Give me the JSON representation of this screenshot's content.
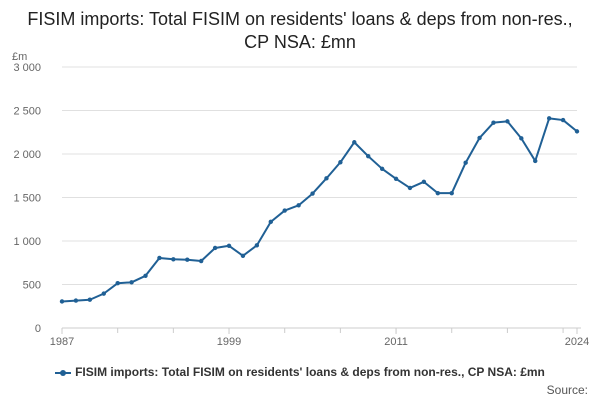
{
  "chart_data": {
    "type": "line",
    "title": "FISIM imports: Total FISIM on residents' loans & deps from non-res., CP NSA: £mn",
    "ylabel": "£m",
    "xlabel": "",
    "ylim": [
      0,
      3000
    ],
    "xlim": [
      1987,
      2024
    ],
    "yticks": [
      0,
      500,
      1000,
      1500,
      2000,
      2500,
      3000
    ],
    "ytick_labels": [
      "0",
      "500",
      "1 000",
      "1 500",
      "2 000",
      "2 500",
      "3 000"
    ],
    "xticks": [
      1987,
      1999,
      2011,
      2024
    ],
    "xtick_labels": [
      "1987",
      "1999",
      "2011",
      "2024"
    ],
    "grid": "horizontal",
    "legend_position": "bottom",
    "series": [
      {
        "name": "FISIM imports: Total FISIM on residents' loans & deps from non-res., CP NSA: £mn",
        "color": "#206095",
        "x": [
          1987,
          1988,
          1989,
          1990,
          1991,
          1992,
          1993,
          1994,
          1995,
          1996,
          1997,
          1998,
          1999,
          2000,
          2001,
          2002,
          2003,
          2004,
          2005,
          2006,
          2007,
          2008,
          2009,
          2010,
          2011,
          2012,
          2013,
          2014,
          2015,
          2016,
          2017,
          2018,
          2019,
          2020,
          2021,
          2022,
          2023,
          2024
        ],
        "values": [
          305,
          315,
          325,
          395,
          515,
          525,
          600,
          805,
          790,
          785,
          770,
          920,
          945,
          830,
          950,
          1220,
          1350,
          1410,
          1545,
          1720,
          1905,
          2135,
          1975,
          1830,
          1715,
          1610,
          1680,
          1550,
          1550,
          1900,
          2185,
          2360,
          2375,
          2180,
          1920,
          2410,
          2390,
          2260
        ]
      }
    ]
  },
  "source_label": "Source:"
}
